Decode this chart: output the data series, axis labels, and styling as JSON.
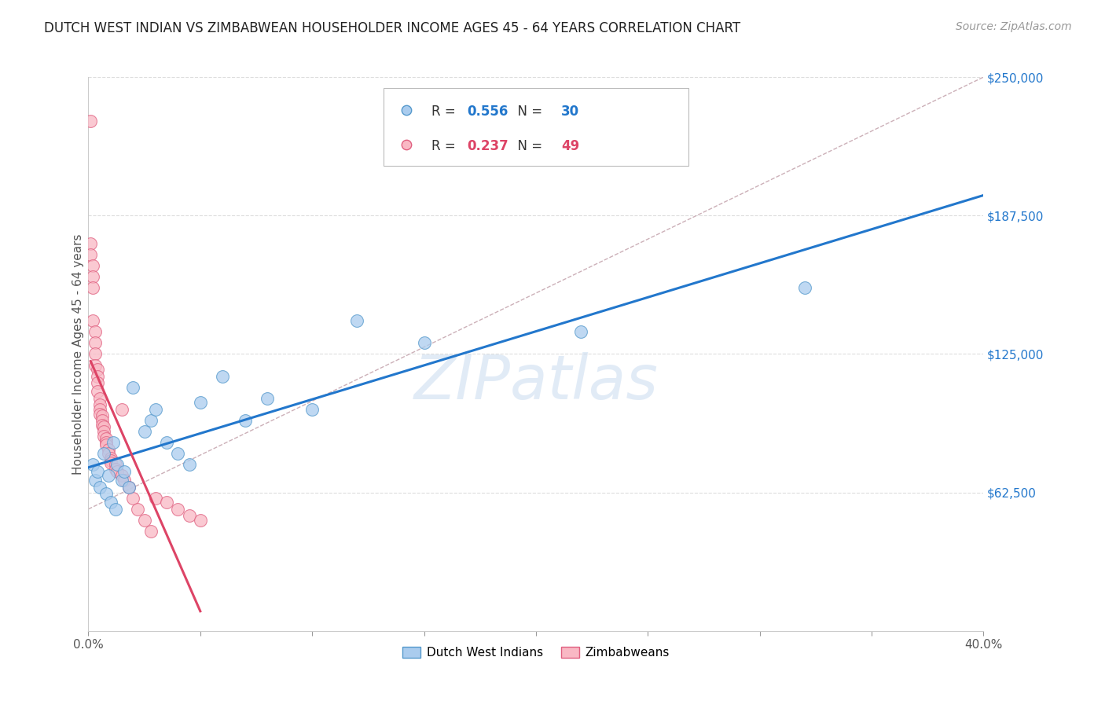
{
  "title": "DUTCH WEST INDIAN VS ZIMBABWEAN HOUSEHOLDER INCOME AGES 45 - 64 YEARS CORRELATION CHART",
  "source": "Source: ZipAtlas.com",
  "ylabel": "Householder Income Ages 45 - 64 years",
  "xlim": [
    0.0,
    0.4
  ],
  "ylim": [
    0,
    250000
  ],
  "xticks": [
    0.0,
    0.05,
    0.1,
    0.15,
    0.2,
    0.25,
    0.3,
    0.35,
    0.4
  ],
  "xticklabels": [
    "0.0%",
    "",
    "",
    "",
    "",
    "",
    "",
    "",
    "40.0%"
  ],
  "ytick_positions": [
    62500,
    125000,
    187500,
    250000
  ],
  "ytick_labels": [
    "$62,500",
    "$125,000",
    "$187,500",
    "$250,000"
  ],
  "blue_R": 0.556,
  "blue_N": 30,
  "pink_R": 0.237,
  "pink_N": 49,
  "blue_fill_color": "#aaccee",
  "pink_fill_color": "#f9b8c4",
  "blue_edge_color": "#5599cc",
  "pink_edge_color": "#e06080",
  "blue_line_color": "#2277cc",
  "pink_line_color": "#dd4466",
  "diagonal_color": "#ccb0b8",
  "watermark": "ZIPatlas",
  "background_color": "#ffffff",
  "grid_color": "#dddddd",
  "blue_scatter_x": [
    0.002,
    0.003,
    0.004,
    0.005,
    0.007,
    0.008,
    0.009,
    0.01,
    0.011,
    0.012,
    0.013,
    0.015,
    0.016,
    0.018,
    0.02,
    0.025,
    0.028,
    0.03,
    0.035,
    0.04,
    0.045,
    0.05,
    0.06,
    0.07,
    0.08,
    0.1,
    0.12,
    0.15,
    0.22,
    0.32
  ],
  "blue_scatter_y": [
    75000,
    68000,
    72000,
    65000,
    80000,
    62000,
    70000,
    58000,
    85000,
    55000,
    75000,
    68000,
    72000,
    65000,
    110000,
    90000,
    95000,
    100000,
    85000,
    80000,
    75000,
    103000,
    115000,
    95000,
    105000,
    100000,
    140000,
    130000,
    135000,
    155000
  ],
  "pink_scatter_x": [
    0.001,
    0.001,
    0.001,
    0.002,
    0.002,
    0.002,
    0.002,
    0.003,
    0.003,
    0.003,
    0.003,
    0.004,
    0.004,
    0.004,
    0.004,
    0.005,
    0.005,
    0.005,
    0.005,
    0.006,
    0.006,
    0.006,
    0.007,
    0.007,
    0.007,
    0.008,
    0.008,
    0.008,
    0.009,
    0.009,
    0.01,
    0.01,
    0.01,
    0.012,
    0.012,
    0.013,
    0.015,
    0.015,
    0.016,
    0.018,
    0.02,
    0.022,
    0.025,
    0.028,
    0.03,
    0.035,
    0.04,
    0.045,
    0.05
  ],
  "pink_scatter_y": [
    230000,
    175000,
    170000,
    165000,
    160000,
    155000,
    140000,
    135000,
    130000,
    125000,
    120000,
    118000,
    115000,
    112000,
    108000,
    105000,
    102000,
    100000,
    98000,
    97000,
    95000,
    93000,
    92000,
    90000,
    88000,
    87000,
    85000,
    84000,
    82000,
    80000,
    78000,
    77000,
    76000,
    75000,
    73000,
    72000,
    100000,
    70000,
    68000,
    65000,
    60000,
    55000,
    50000,
    45000,
    60000,
    58000,
    55000,
    52000,
    50000
  ]
}
